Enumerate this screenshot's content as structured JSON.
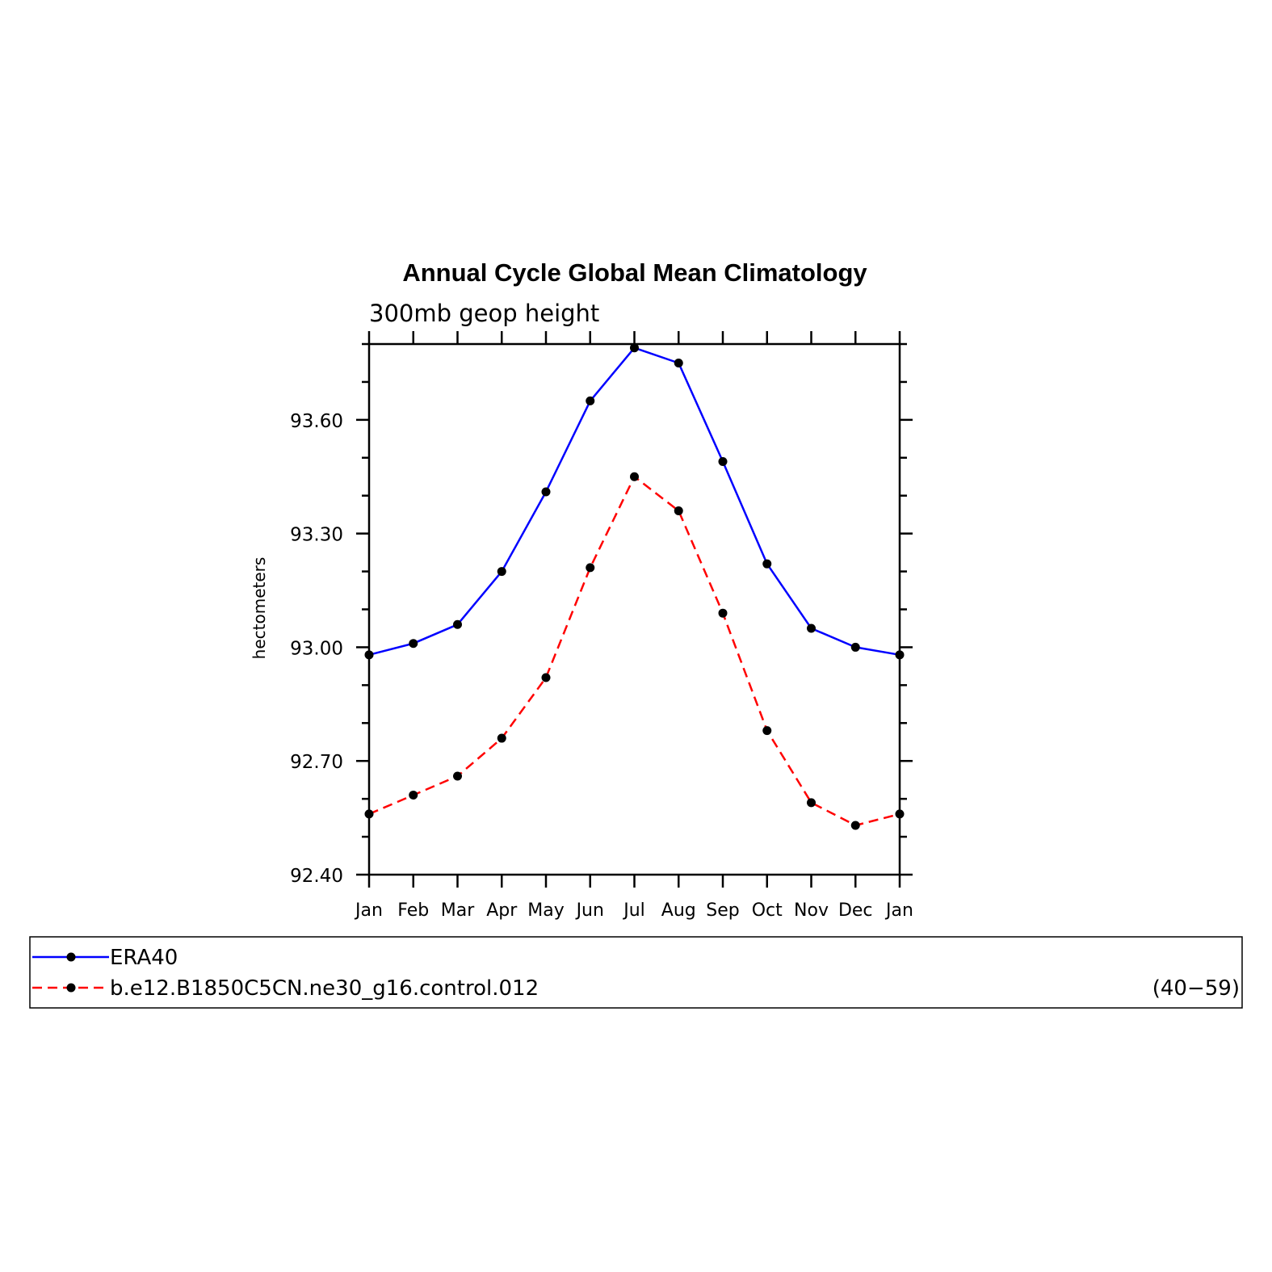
{
  "chart_data": {
    "type": "line",
    "title": "Annual Cycle Global Mean Climatology",
    "subtitle": "300mb geop height",
    "ylabel": "hectometers",
    "xlabel": "",
    "categories": [
      "Jan",
      "Feb",
      "Mar",
      "Apr",
      "May",
      "Jun",
      "Jul",
      "Aug",
      "Sep",
      "Oct",
      "Nov",
      "Dec",
      "Jan"
    ],
    "ylim": [
      92.4,
      93.8
    ],
    "yticks": [
      92.4,
      92.7,
      93.0,
      93.3,
      93.6
    ],
    "ytick_labels": [
      "92.40",
      "92.70",
      "93.00",
      "93.30",
      "93.60"
    ],
    "grid": false,
    "legend_position": "bottom",
    "series": [
      {
        "name": "ERA40",
        "color": "#0000ff",
        "dash": "solid",
        "marker": "dot",
        "values": [
          92.98,
          93.01,
          93.06,
          93.2,
          93.41,
          93.65,
          93.79,
          93.75,
          93.49,
          93.22,
          93.05,
          93.0,
          92.98
        ]
      },
      {
        "name": "b.e12.B1850C5CN.ne30_g16.control.012",
        "color": "#ff0000",
        "dash": "dashed",
        "marker": "dot",
        "values": [
          92.56,
          92.61,
          92.66,
          92.76,
          92.92,
          93.21,
          93.45,
          93.36,
          93.09,
          92.78,
          92.59,
          92.53,
          92.56
        ]
      }
    ],
    "legend_note": "(40−59)"
  }
}
